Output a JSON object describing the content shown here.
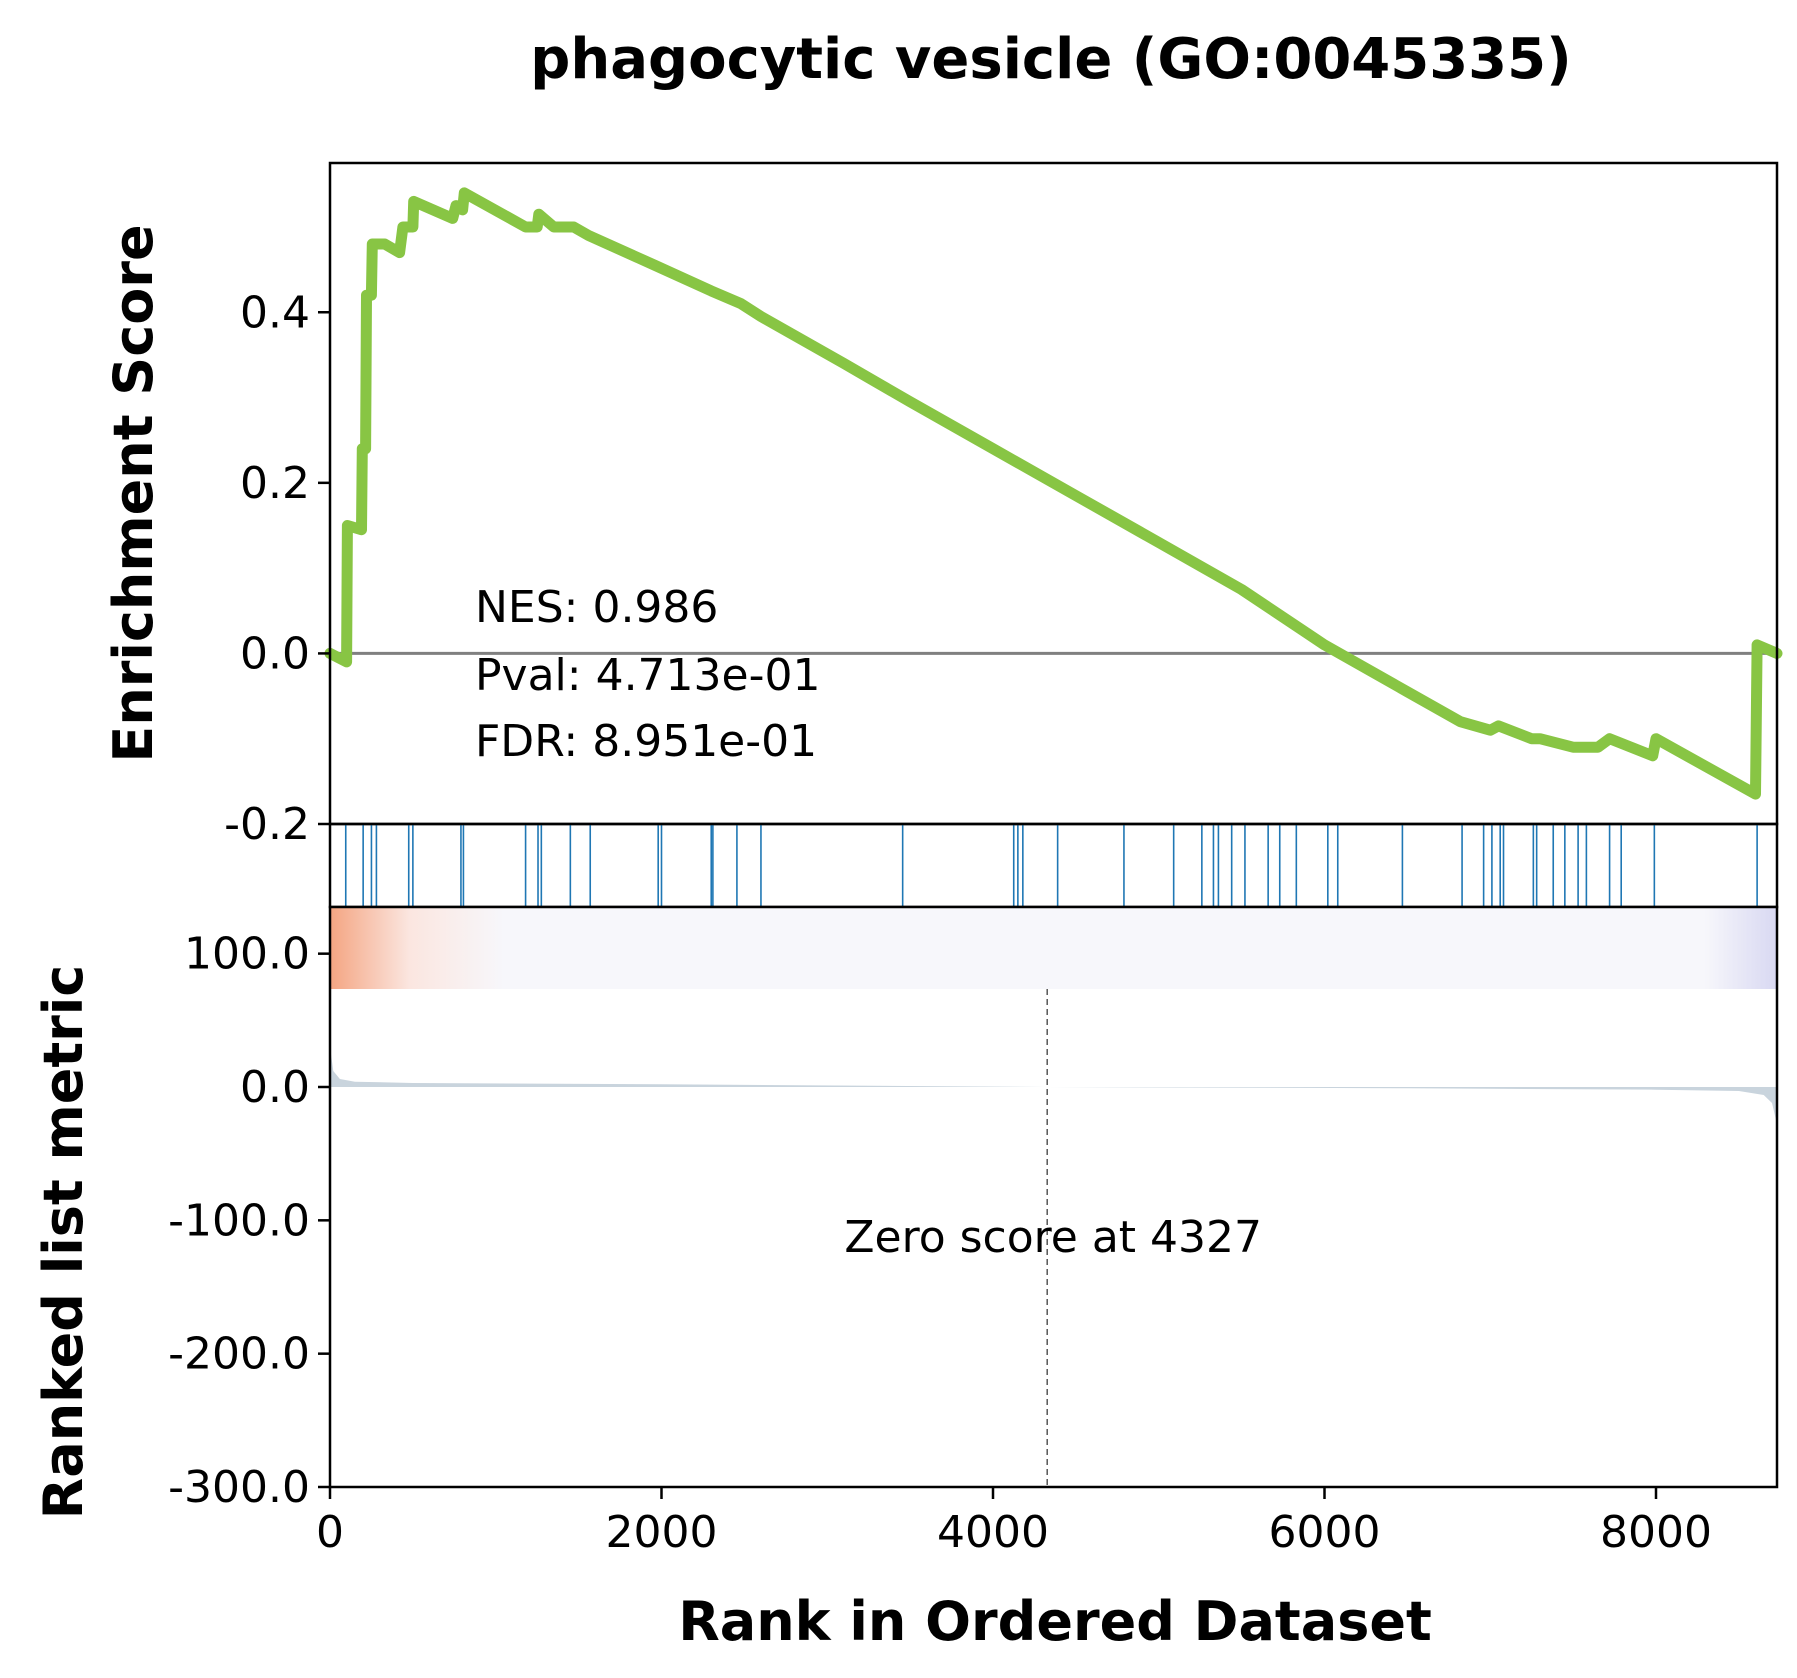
{
  "chart_data": {
    "type": "line",
    "title": "phagocytic vesicle (GO:0045335)",
    "xlabel": "Rank in Ordered Dataset",
    "xlim": [
      0,
      8730
    ],
    "x_ticks": [
      0,
      2000,
      4000,
      6000,
      8000
    ],
    "x_tick_labels": [
      "0",
      "2000",
      "4000",
      "6000",
      "8000"
    ],
    "enrichment": {
      "ylabel": "Enrichment Score",
      "ylim": [
        -0.2,
        0.575
      ],
      "y_ticks": [
        -0.2,
        0.0,
        0.2,
        0.4
      ],
      "y_tick_labels": [
        "-0.2",
        "0.0",
        "0.2",
        "0.4"
      ],
      "baseline": 0.0,
      "line_color": "#88c544",
      "points": [
        [
          0,
          0.0
        ],
        [
          100,
          -0.01
        ],
        [
          105,
          0.15
        ],
        [
          190,
          0.145
        ],
        [
          195,
          0.24
        ],
        [
          215,
          0.24
        ],
        [
          220,
          0.42
        ],
        [
          250,
          0.42
        ],
        [
          255,
          0.48
        ],
        [
          330,
          0.48
        ],
        [
          420,
          0.47
        ],
        [
          440,
          0.5
        ],
        [
          500,
          0.5
        ],
        [
          505,
          0.53
        ],
        [
          740,
          0.51
        ],
        [
          760,
          0.525
        ],
        [
          800,
          0.52
        ],
        [
          810,
          0.54
        ],
        [
          1180,
          0.5
        ],
        [
          1250,
          0.5
        ],
        [
          1260,
          0.515
        ],
        [
          1350,
          0.5
        ],
        [
          1470,
          0.5
        ],
        [
          1560,
          0.49
        ],
        [
          1960,
          0.455
        ],
        [
          2300,
          0.425
        ],
        [
          2480,
          0.41
        ],
        [
          2600,
          0.395
        ],
        [
          3100,
          0.34
        ],
        [
          3500,
          0.295
        ],
        [
          4000,
          0.24
        ],
        [
          4500,
          0.185
        ],
        [
          5000,
          0.13
        ],
        [
          5500,
          0.075
        ],
        [
          6000,
          0.01
        ],
        [
          6500,
          -0.045
        ],
        [
          6820,
          -0.08
        ],
        [
          7000,
          -0.09
        ],
        [
          7050,
          -0.085
        ],
        [
          7250,
          -0.1
        ],
        [
          7300,
          -0.1
        ],
        [
          7500,
          -0.11
        ],
        [
          7650,
          -0.11
        ],
        [
          7720,
          -0.1
        ],
        [
          7980,
          -0.12
        ],
        [
          8000,
          -0.1
        ],
        [
          8600,
          -0.165
        ],
        [
          8610,
          0.01
        ],
        [
          8730,
          0.0
        ]
      ]
    },
    "stats": {
      "nes": "NES: 0.986",
      "pval": "Pval: 4.713e-01",
      "fdr": "FDR: 8.951e-01"
    },
    "hits": {
      "color": "#1f77b4",
      "positions": [
        95,
        200,
        250,
        280,
        475,
        500,
        790,
        805,
        1180,
        1255,
        1275,
        1450,
        1570,
        1980,
        2000,
        2300,
        2310,
        2455,
        2600,
        3455,
        4125,
        4150,
        4180,
        4390,
        4790,
        5090,
        5260,
        5330,
        5360,
        5440,
        5520,
        5660,
        5730,
        5830,
        6020,
        6080,
        6470,
        6830,
        6960,
        7010,
        7060,
        7080,
        7260,
        7280,
        7380,
        7450,
        7530,
        7580,
        7720,
        7790,
        7990,
        8610
      ]
    },
    "ranked_metric": {
      "ylabel": "Ranked list metric",
      "ylim": [
        -300,
        135
      ],
      "y_ticks": [
        -300,
        -200,
        -100,
        0,
        100
      ],
      "y_tick_labels": [
        "-300.0",
        "-200.0",
        "-100.0",
        "0.0",
        "100.0"
      ],
      "fill_color": "#c9d4dd",
      "points": [
        [
          0,
          30
        ],
        [
          20,
          12
        ],
        [
          60,
          6
        ],
        [
          150,
          4
        ],
        [
          500,
          3
        ],
        [
          2000,
          2
        ],
        [
          4327,
          0
        ],
        [
          6500,
          -1
        ],
        [
          8000,
          -2
        ],
        [
          8500,
          -3
        ],
        [
          8650,
          -6
        ],
        [
          8700,
          -12
        ],
        [
          8730,
          -28
        ]
      ],
      "heat_colors": {
        "positive": "#f4a582",
        "neutral": "#f7f7fb",
        "negative": "#9e9ee0"
      },
      "zero_cross": 4327,
      "zero_label": "Zero score at 4327"
    }
  }
}
